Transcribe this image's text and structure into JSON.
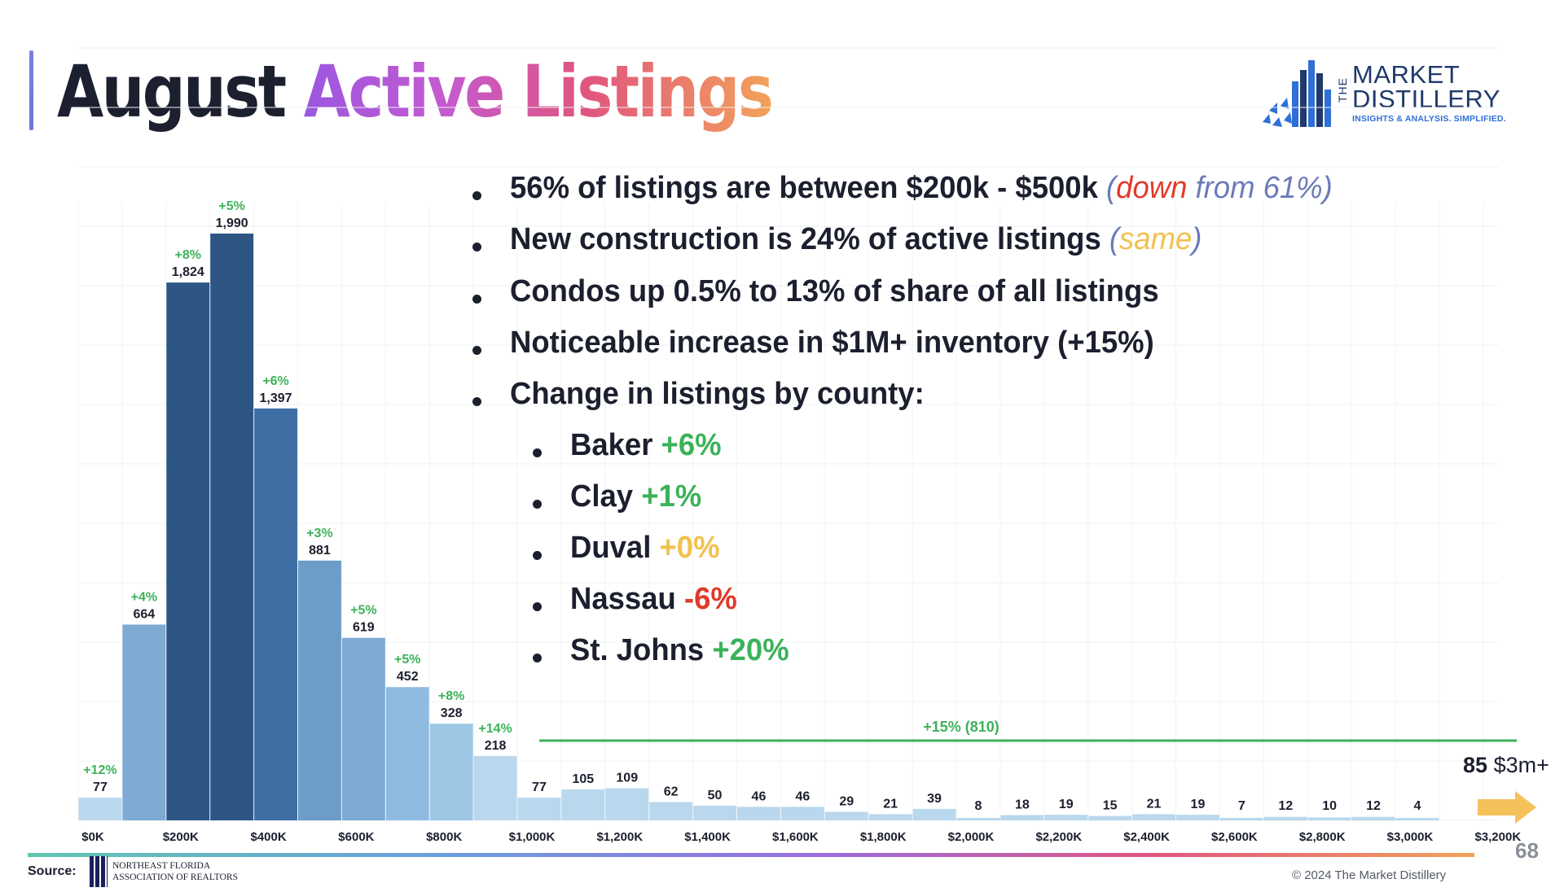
{
  "title": {
    "part1": "August",
    "part2": "Active Listings"
  },
  "logo": {
    "line_the": "THE",
    "line1": "MARKET",
    "line2": "DISTILLERY",
    "tagline": "INSIGHTS & ANALYSIS. SIMPLIFIED."
  },
  "bullets": {
    "b1_main": "56% of listings are between $200k - $500k",
    "b1_open": "(",
    "b1_down": "down",
    "b1_rest": "from 61%)",
    "b2_main": "New construction is 24% of active listings",
    "b2_open": "(",
    "b2_same": "same",
    "b2_close": ")",
    "b3": "Condos up 0.5% to 13% of share of all listings",
    "b4": "Noticeable increase in $1M+ inventory (+15%)",
    "b5": "Change in listings by county:",
    "counties": [
      {
        "name": "Baker",
        "change": "+6%"
      },
      {
        "name": "Clay",
        "change": "+1%"
      },
      {
        "name": "Duval",
        "change": "+0%"
      },
      {
        "name": "Nassau",
        "change": "-6%"
      },
      {
        "name": "St. Johns",
        "change": "+20%"
      }
    ]
  },
  "annotation_1m": "+15% (810)",
  "overflow": {
    "count": "85",
    "label": "$3m+"
  },
  "source_label": "Source:",
  "association": {
    "line1": "NORTHEAST FLORIDA",
    "line2": "ASSOCIATION OF REALTORS"
  },
  "copyright": "© 2024 The Market Distillery",
  "page_number": "68",
  "colors": {
    "dark_bar": "#2d5685",
    "mid_bar": "#4a7fb5",
    "light_bar": "#b9d8ee",
    "green": "#3cb25a",
    "yellow": "#f2c14e",
    "red": "#e03b2b"
  },
  "chart_data": {
    "type": "bar",
    "x_tick_labels": [
      "$0K",
      "$200K",
      "$400K",
      "$600K",
      "$800K",
      "$1,000K",
      "$1,200K",
      "$1,400K",
      "$1,600K",
      "$1,800K",
      "$2,000K",
      "$2,200K",
      "$2,400K",
      "$2,600K",
      "$2,800K",
      "$3,000K",
      "$3,200K"
    ],
    "bin_width": 100,
    "values": [
      77,
      664,
      1824,
      1990,
      1397,
      881,
      619,
      452,
      328,
      218,
      77,
      105,
      109,
      62,
      50,
      46,
      46,
      29,
      21,
      39,
      8,
      18,
      19,
      15,
      21,
      19,
      7,
      12,
      10,
      12,
      4
    ],
    "value_labels": [
      "77",
      "664",
      "1,824",
      "1,990",
      "1,397",
      "881",
      "619",
      "452",
      "328",
      "218",
      "77",
      "105",
      "109",
      "62",
      "50",
      "46",
      "46",
      "29",
      "21",
      "39",
      "8",
      "18",
      "19",
      "15",
      "21",
      "19",
      "7",
      "12",
      "10",
      "12",
      "4"
    ],
    "changes": [
      "+12%",
      "+4%",
      "+8%",
      "+5%",
      "+6%",
      "+3%",
      "+5%",
      "+5%",
      "+8%",
      "+14%",
      "",
      "",
      "",
      "",
      "",
      "",
      "",
      "",
      "",
      "",
      "",
      "",
      "",
      "",
      "",
      "",
      "",
      "",
      "",
      "",
      ""
    ],
    "ylim": [
      0,
      2100
    ],
    "grid": true
  }
}
